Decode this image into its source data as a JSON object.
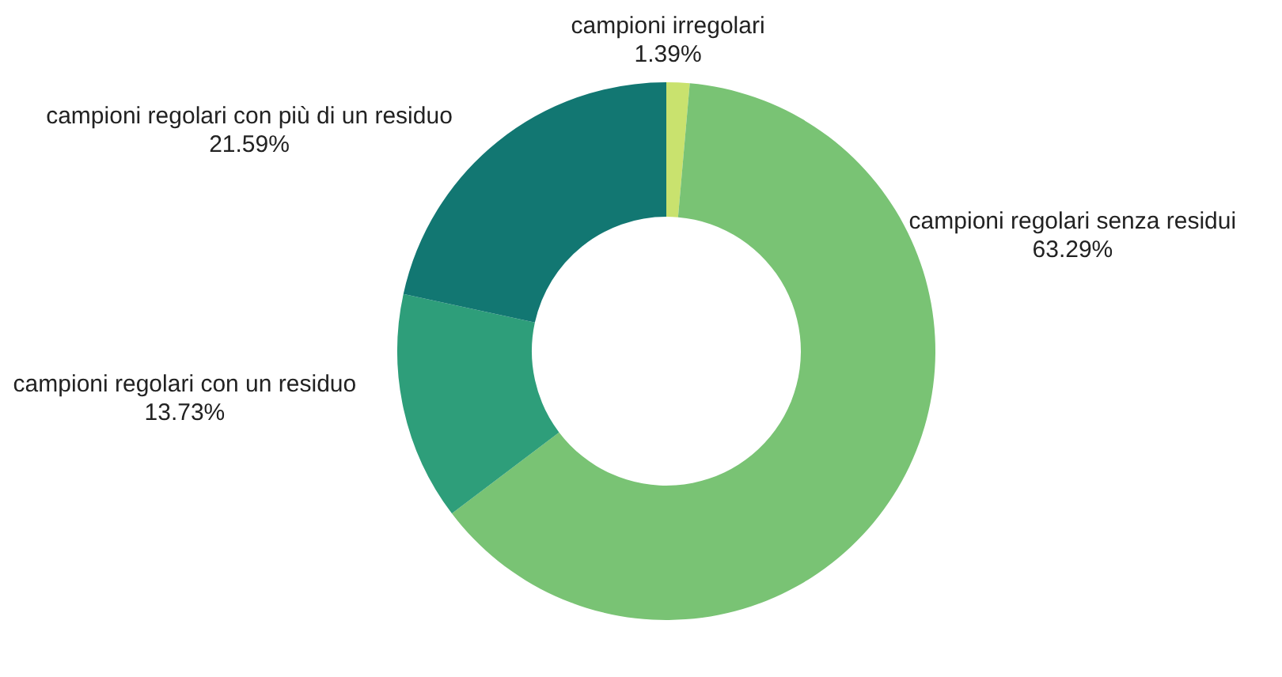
{
  "chart_data": {
    "type": "donut",
    "categories": [
      "campioni irregolari",
      "campioni regolari senza residui",
      "campioni regolari con un residuo",
      "campioni regolari con più di un residuo"
    ],
    "values": [
      1.39,
      63.29,
      13.73,
      21.59
    ],
    "colors": [
      "#c9e26e",
      "#79c374",
      "#2e9e7a",
      "#127772"
    ],
    "value_labels": [
      "1.39%",
      "63.29%",
      "13.73%",
      "21.59%"
    ]
  }
}
